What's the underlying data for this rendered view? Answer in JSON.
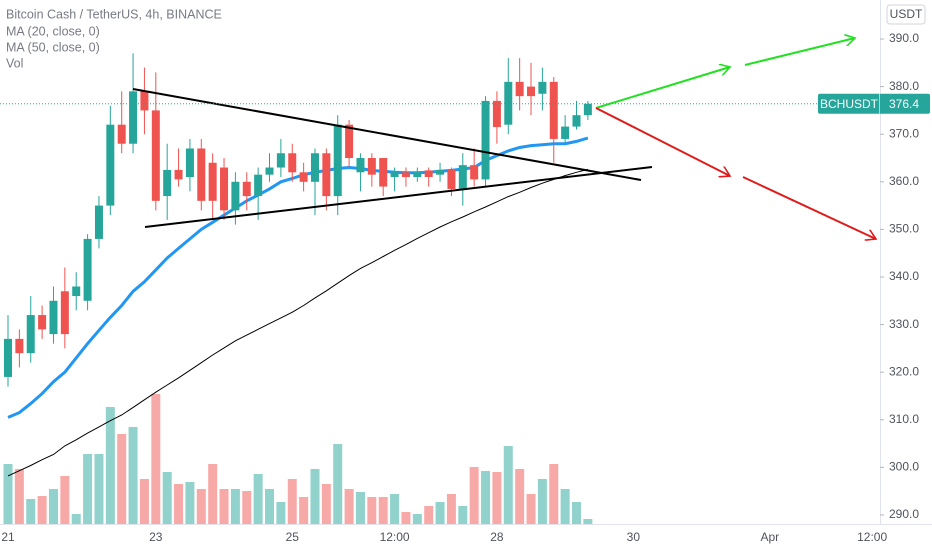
{
  "chart_data": {
    "type": "candlestick",
    "title": "Bitcoin Cash / TetherUS, 4h, BINANCE",
    "currency": "USDT",
    "price_label": "BCHUSDT",
    "volume_name": "Vol",
    "categories": [
      "21",
      null,
      null,
      null,
      null,
      null,
      null,
      null,
      null,
      null,
      null,
      null,
      null,
      "23",
      null,
      null,
      null,
      null,
      null,
      null,
      null,
      null,
      null,
      null,
      null,
      "25",
      null,
      null,
      null,
      null,
      null,
      null,
      null,
      null,
      "12:00",
      null,
      null,
      null,
      null,
      null,
      null,
      null,
      null,
      "28",
      null,
      null,
      null,
      null,
      null,
      null,
      null,
      null,
      null,
      null,
      null,
      "30",
      null,
      null,
      null,
      null,
      null,
      null,
      null,
      null,
      null,
      null,
      null,
      "Apr",
      null,
      null,
      null,
      null,
      null,
      null,
      null,
      null,
      "12:00"
    ],
    "open": [
      319,
      327,
      324,
      332,
      328,
      337,
      336,
      335,
      348,
      355,
      372,
      368,
      379,
      375,
      357,
      362.5,
      361,
      367,
      364,
      363,
      354,
      360,
      357,
      361.5,
      363,
      366,
      362,
      360,
      366,
      357,
      372,
      362,
      365,
      365,
      361,
      362,
      361,
      362.4,
      361.5,
      362.5,
      358.5,
      363.5,
      360.5,
      377,
      372,
      381,
      380,
      378.5,
      381,
      369,
      371.6,
      374,
      null,
      null,
      null,
      null,
      null,
      null,
      null,
      null,
      null,
      null,
      null,
      null,
      null,
      null,
      null,
      null,
      null,
      null,
      null,
      null,
      null,
      null,
      null,
      null,
      null
    ],
    "high": [
      332,
      329,
      336,
      334,
      338,
      342,
      341,
      349,
      357,
      376,
      379,
      387,
      384,
      383,
      368,
      367,
      369,
      369,
      366,
      365,
      362,
      362,
      363,
      366,
      369,
      368,
      364,
      367,
      367,
      374,
      373,
      366,
      366,
      365,
      363,
      363,
      363,
      363,
      364,
      363,
      366,
      367,
      378,
      379,
      386,
      386,
      385,
      384,
      382,
      374,
      377,
      377,
      null,
      null,
      null,
      null,
      null,
      null,
      null,
      null,
      null,
      null,
      null,
      null,
      null,
      null,
      null,
      null,
      null,
      null,
      null,
      null,
      null,
      null,
      null,
      null,
      null
    ],
    "low": [
      317,
      321,
      322,
      327,
      326,
      325,
      333,
      333,
      346,
      353,
      366,
      366,
      370,
      354,
      352,
      359,
      358,
      354,
      352,
      352,
      351,
      354,
      352,
      360,
      361,
      360,
      358,
      353,
      354,
      353,
      363,
      358,
      359,
      357,
      358,
      359,
      360,
      359,
      360,
      357,
      355,
      359,
      359,
      368,
      370,
      375,
      374,
      375,
      364,
      368,
      371,
      373,
      null,
      null,
      null,
      null,
      null,
      null,
      null,
      null,
      null,
      null,
      null,
      null,
      null,
      null,
      null,
      null,
      null,
      null,
      null,
      null,
      null,
      null,
      null,
      null,
      null
    ],
    "close": [
      327,
      324,
      332,
      329,
      335,
      328,
      338,
      348,
      355,
      372,
      368,
      379,
      375,
      356,
      362.5,
      360.5,
      367,
      356,
      356,
      354,
      360,
      357,
      361.5,
      363,
      366,
      362,
      360,
      366,
      357,
      372,
      365,
      365,
      361.5,
      359,
      362,
      361,
      362,
      361,
      362.5,
      358.5,
      363.5,
      360.5,
      377,
      371.5,
      381,
      378,
      378,
      381,
      369,
      371.6,
      374,
      376.4,
      null,
      null,
      null,
      null,
      null,
      null,
      null,
      null,
      null,
      null,
      null,
      null,
      null,
      null,
      null,
      null,
      null,
      null,
      null,
      null,
      null,
      null,
      null,
      null,
      null
    ],
    "volume": [
      60,
      55,
      25,
      28,
      35,
      48,
      10,
      70,
      70,
      117,
      90,
      97,
      45,
      130,
      52,
      40,
      42,
      35,
      60,
      35,
      35,
      33,
      50,
      35,
      22,
      45,
      27,
      55,
      40,
      80,
      35,
      32,
      27,
      27,
      30,
      12,
      10,
      18,
      22,
      30,
      18,
      57,
      53,
      52,
      78,
      55,
      30,
      45,
      60,
      35,
      22,
      5,
      null,
      null,
      null,
      null,
      null,
      null,
      null,
      null,
      null,
      null,
      null,
      null,
      null,
      null,
      null,
      null,
      null,
      null,
      null,
      null,
      null,
      null,
      null,
      null,
      null
    ],
    "series": [
      {
        "name": "MA (20, close, 0)",
        "color": "#2196f3",
        "values": [
          310.5,
          311.5,
          313.4,
          315.5,
          318,
          320,
          323,
          326,
          328.8,
          331.5,
          334,
          337,
          339,
          341.5,
          344,
          346,
          348,
          350,
          351.5,
          353,
          354.5,
          356,
          357.2,
          358.5,
          360,
          360.7,
          361.5,
          362,
          362.4,
          362.8,
          363,
          362.8,
          362.4,
          362.2,
          362,
          361.9,
          361.9,
          362,
          362.2,
          362.4,
          362.7,
          363,
          364.5,
          365.5,
          366.5,
          367.2,
          367.6,
          367.8,
          368,
          368,
          368.5,
          369.2,
          null,
          null,
          null,
          null,
          null,
          null,
          null,
          null,
          null,
          null,
          null,
          null,
          null,
          null,
          null,
          null,
          null,
          null,
          null,
          null,
          null,
          null,
          null,
          null,
          null
        ]
      },
      {
        "name": "MA (50, close, 0)",
        "color": "#000000",
        "values": [
          298.2,
          299.3,
          300.4,
          301.6,
          302.7,
          304.5,
          305.8,
          307.2,
          308.5,
          309.8,
          311,
          312.6,
          314.2,
          315.8,
          317.3,
          318.8,
          320.4,
          322,
          323.6,
          325.1,
          326.6,
          327.8,
          329,
          330.2,
          331.4,
          332.6,
          334,
          335.6,
          337.1,
          338.7,
          340.3,
          341.8,
          343,
          344.3,
          345.6,
          346.8,
          348.1,
          349.3,
          350.5,
          351.6,
          352.6,
          353.7,
          354.7,
          355.8,
          356.9,
          357.8,
          358.8,
          359.7,
          360.5,
          361.3,
          362,
          362.6,
          null,
          null,
          null,
          null,
          null,
          null,
          null,
          null,
          null,
          null,
          null,
          null,
          null,
          null,
          null,
          null,
          null,
          null,
          null,
          null,
          null,
          null,
          null,
          null,
          null
        ]
      }
    ],
    "up_color": "#26a69a",
    "down_color": "#ef5350",
    "ylim": [
      288.1,
      398.2
    ],
    "yticks": [
      {
        "value": 290,
        "label": "290.0"
      },
      {
        "value": 300,
        "label": "300.0"
      },
      {
        "value": 310,
        "label": "310.0"
      },
      {
        "value": 320,
        "label": "320.0"
      },
      {
        "value": 330,
        "label": "330.0"
      },
      {
        "value": 340,
        "label": "340.0"
      },
      {
        "value": 350,
        "label": "350.0"
      },
      {
        "value": 360,
        "label": "360.0"
      },
      {
        "value": 370,
        "label": "370.0"
      },
      {
        "value": 380,
        "label": "380.0"
      },
      {
        "value": 390,
        "label": "390.0"
      }
    ]
  }
}
